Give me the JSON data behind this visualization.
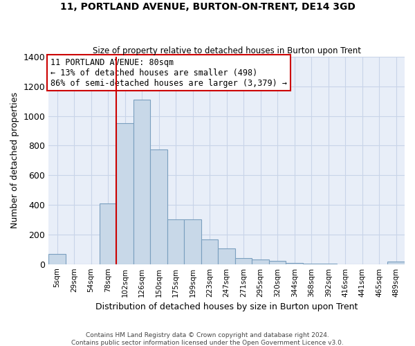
{
  "title": "11, PORTLAND AVENUE, BURTON-ON-TRENT, DE14 3GD",
  "subtitle": "Size of property relative to detached houses in Burton upon Trent",
  "xlabel": "Distribution of detached houses by size in Burton upon Trent",
  "ylabel": "Number of detached properties",
  "footer_line1": "Contains HM Land Registry data © Crown copyright and database right 2024.",
  "footer_line2": "Contains public sector information licensed under the Open Government Licence v3.0.",
  "categories": [
    "5sqm",
    "29sqm",
    "54sqm",
    "78sqm",
    "102sqm",
    "126sqm",
    "150sqm",
    "175sqm",
    "199sqm",
    "223sqm",
    "247sqm",
    "271sqm",
    "295sqm",
    "320sqm",
    "344sqm",
    "368sqm",
    "392sqm",
    "416sqm",
    "441sqm",
    "465sqm",
    "489sqm"
  ],
  "values": [
    70,
    0,
    0,
    410,
    950,
    1110,
    775,
    300,
    300,
    165,
    105,
    40,
    30,
    20,
    10,
    5,
    5,
    0,
    0,
    0,
    15
  ],
  "bar_color": "#c8d8e8",
  "bar_edge_color": "#7a9fbf",
  "ylim": [
    0,
    1400
  ],
  "yticks": [
    0,
    200,
    400,
    600,
    800,
    1000,
    1200,
    1400
  ],
  "grid_color": "#c8d4e8",
  "bg_color": "#e8eef8",
  "vline_x": 3.5,
  "annotation_title": "11 PORTLAND AVENUE: 80sqm",
  "annotation_line1": "← 13% of detached houses are smaller (498)",
  "annotation_line2": "86% of semi-detached houses are larger (3,379) →",
  "vline_color": "#cc0000",
  "annotation_box_color": "#ffffff",
  "annotation_box_edge": "#cc0000"
}
